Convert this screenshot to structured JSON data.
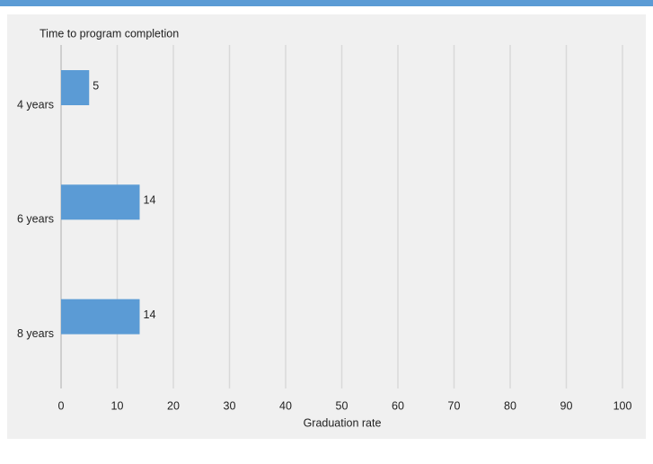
{
  "chart_data": {
    "type": "bar",
    "orientation": "horizontal",
    "y_axis_label": "Time to program completion",
    "x_axis_label": "Graduation rate",
    "categories": [
      "4 years",
      "6 years",
      "8 years"
    ],
    "values": [
      5,
      14,
      14
    ],
    "color": "#5b9bd5",
    "xlim": [
      0,
      100
    ],
    "xticks": [
      0,
      10,
      20,
      30,
      40,
      50,
      60,
      70,
      80,
      90,
      100
    ],
    "grid": true
  }
}
